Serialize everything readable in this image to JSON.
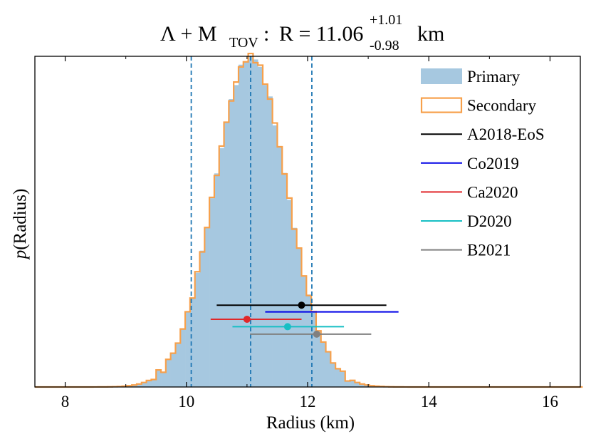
{
  "chart_data": {
    "type": "histogram",
    "title": {
      "main": "Λ + M",
      "main_sub": "TOV",
      "colon": ":",
      "lhs": "R = 11.06",
      "sup": "+1.01",
      "sub": "-0.98",
      "unit": "km"
    },
    "xlabel": "Radius (km)",
    "ylabel": {
      "italic": "p",
      "rest": "(Radius)"
    },
    "xlim": [
      7.5,
      16.5
    ],
    "ylim": [
      0,
      1.0
    ],
    "xticks": [
      8,
      10,
      12,
      14,
      16
    ],
    "xtick_labels": [
      "8",
      "10",
      "12",
      "14",
      "16"
    ],
    "histogram": {
      "mean": 11.06,
      "sigma": 0.6,
      "bin_width": 0.08,
      "peak": 0.9992,
      "primary_color": "#a6c8e0",
      "secondary_color": "#f7a04b"
    },
    "vlines": {
      "values": [
        10.08,
        11.06,
        12.07
      ],
      "color": "#1f77b4"
    },
    "legend": {
      "position": "top-right",
      "entries": [
        {
          "label": "Primary",
          "kind": "patch",
          "color": "#a6c8e0"
        },
        {
          "label": "Secondary",
          "kind": "step",
          "color": "#f7a04b"
        },
        {
          "label": "A2018-EoS",
          "kind": "line",
          "color": "#000000"
        },
        {
          "label": "Co2019",
          "kind": "line",
          "color": "#0000e6"
        },
        {
          "label": "Ca2020",
          "kind": "line",
          "color": "#e0282a"
        },
        {
          "label": "D2020",
          "kind": "line",
          "color": "#17bfc4"
        },
        {
          "label": "B2021",
          "kind": "line",
          "color": "#808080"
        }
      ]
    },
    "error_bars": [
      {
        "name": "A2018-EoS",
        "center": 11.9,
        "low": 10.5,
        "high": 13.3,
        "y": 0.2474,
        "color": "#000000",
        "marker": true
      },
      {
        "name": "Co2019",
        "center": 12.4,
        "low": 11.3,
        "high": 13.5,
        "y": 0.2271,
        "color": "#0000e6",
        "marker": false
      },
      {
        "name": "Ca2020",
        "center": 11.0,
        "low": 10.4,
        "high": 11.9,
        "y": 0.2048,
        "color": "#e0282a",
        "marker": true
      },
      {
        "name": "D2020",
        "center": 11.67,
        "low": 10.76,
        "high": 12.6,
        "y": 0.1823,
        "color": "#17bfc4",
        "marker": true
      },
      {
        "name": "B2021",
        "center": 12.15,
        "low": 11.05,
        "high": 13.05,
        "y": 0.1598,
        "color": "#808080",
        "marker": true
      }
    ]
  }
}
